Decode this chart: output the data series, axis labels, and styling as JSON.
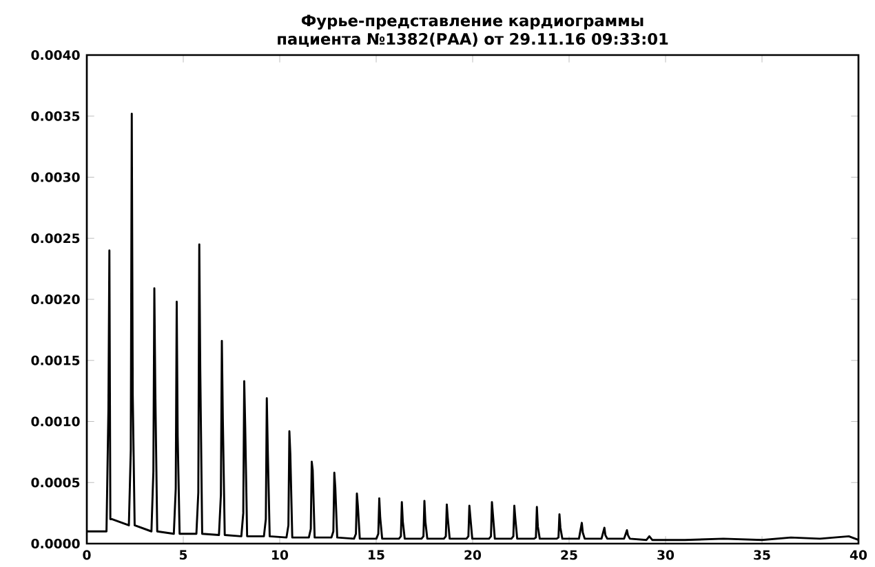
{
  "chart_data": {
    "type": "line",
    "title": "Фурье-представление кардиограммы пациента №1382(РАА) от 29.11.16 09:33:01",
    "xlim": [
      0,
      40
    ],
    "ylim": [
      0,
      0.004
    ],
    "xticks": [
      0,
      5,
      10,
      15,
      20,
      25,
      30,
      35,
      40
    ],
    "yticks": [
      {
        "value": 0,
        "label": "0.0000"
      },
      {
        "value": 0.0005,
        "label": "0.0005"
      },
      {
        "value": 0.001,
        "label": "0.0010"
      },
      {
        "value": 0.0015,
        "label": "0.0015"
      },
      {
        "value": 0.002,
        "label": "0.0020"
      },
      {
        "value": 0.0025,
        "label": "0.0025"
      },
      {
        "value": 0.003,
        "label": "0.0030"
      },
      {
        "value": 0.0035,
        "label": "0.0035"
      },
      {
        "value": 0.004,
        "label": "0.0040"
      }
    ],
    "series": [
      {
        "color": "#000000",
        "x": [
          0,
          1.02,
          1.12,
          1.17,
          1.22,
          1.32,
          2.18,
          2.28,
          2.33,
          2.38,
          2.48,
          3.35,
          3.45,
          3.5,
          3.55,
          3.65,
          4.51,
          4.61,
          4.66,
          4.71,
          4.81,
          5.68,
          5.78,
          5.83,
          5.88,
          5.98,
          6.85,
          6.95,
          7.0,
          7.05,
          7.15,
          8.01,
          8.11,
          8.16,
          8.21,
          8.31,
          9.18,
          9.28,
          9.33,
          9.38,
          9.48,
          10.35,
          10.45,
          10.5,
          10.55,
          10.65,
          11.51,
          11.61,
          11.66,
          11.71,
          11.81,
          12.68,
          12.78,
          12.83,
          12.88,
          12.98,
          13.85,
          13.95,
          14.0,
          14.05,
          14.15,
          15.01,
          15.11,
          15.16,
          15.21,
          15.31,
          16.18,
          16.28,
          16.33,
          16.38,
          16.48,
          17.35,
          17.45,
          17.5,
          17.55,
          17.65,
          18.51,
          18.61,
          18.66,
          18.71,
          18.81,
          19.68,
          19.78,
          19.83,
          19.88,
          19.98,
          20.85,
          20.95,
          21.0,
          21.05,
          21.15,
          22.01,
          22.11,
          22.16,
          22.21,
          22.31,
          23.18,
          23.28,
          23.33,
          23.38,
          23.48,
          24.35,
          24.45,
          24.5,
          24.55,
          24.65,
          25.51,
          25.66,
          25.71,
          25.81,
          26.68,
          26.83,
          26.88,
          26.98,
          27.85,
          28.0,
          28.05,
          28.15,
          29.01,
          29.16,
          29.31,
          31,
          33,
          35,
          36.5,
          38,
          39.5,
          40
        ],
        "values": [
          0.0001,
          0.0001,
          0.0011,
          0.0024,
          0.0002,
          0.0002,
          0.00015,
          0.00077,
          0.00352,
          0.00122,
          0.00015,
          0.0001,
          0.00059,
          0.00209,
          0.00125,
          0.0001,
          8e-05,
          0.00045,
          0.00198,
          0.00088,
          8e-05,
          8e-05,
          0.00042,
          0.00245,
          0.00143,
          8e-05,
          7e-05,
          0.0004,
          0.00166,
          0.00102,
          7e-05,
          6e-05,
          0.00025,
          0.00133,
          0.00096,
          6e-05,
          6e-05,
          0.0002,
          0.00119,
          0.00077,
          6e-05,
          5e-05,
          0.00015,
          0.00092,
          0.00073,
          5e-05,
          5e-05,
          0.00012,
          0.00067,
          0.0006,
          5e-05,
          5e-05,
          0.0001,
          0.00058,
          0.00046,
          5e-05,
          4e-05,
          8e-05,
          0.00041,
          0.00031,
          4e-05,
          4e-05,
          8e-05,
          0.00037,
          0.00021,
          4e-05,
          4e-05,
          6e-05,
          0.00034,
          0.00018,
          4e-05,
          4e-05,
          6e-05,
          0.00035,
          0.00018,
          4e-05,
          4e-05,
          6e-05,
          0.00032,
          0.00021,
          4e-05,
          4e-05,
          6e-05,
          0.00031,
          0.00022,
          4e-05,
          4e-05,
          6e-05,
          0.00034,
          0.00024,
          4e-05,
          4e-05,
          6e-05,
          0.00031,
          0.00021,
          4e-05,
          4e-05,
          5e-05,
          0.0003,
          0.00014,
          4e-05,
          4e-05,
          5e-05,
          0.00024,
          0.00013,
          4e-05,
          4e-05,
          0.00017,
          9e-05,
          4e-05,
          4e-05,
          0.00013,
          7e-05,
          4e-05,
          4e-05,
          0.00011,
          7e-05,
          4e-05,
          3e-05,
          6e-05,
          3e-05,
          3e-05,
          4e-05,
          3e-05,
          5e-05,
          4e-05,
          6e-05,
          3e-05
        ]
      }
    ]
  }
}
